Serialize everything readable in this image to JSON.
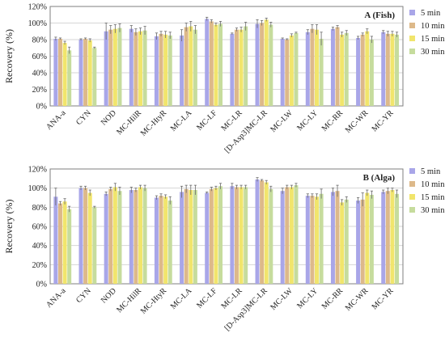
{
  "chart_data": [
    {
      "type": "bar",
      "title": "A (Fish)",
      "ylabel": "Recovery (%)",
      "xlabel": "",
      "ylim": [
        0,
        120
      ],
      "yticks": [
        "0%",
        "20%",
        "40%",
        "60%",
        "80%",
        "100%",
        "120%"
      ],
      "grid": true,
      "legend_position": "right",
      "categories": [
        "ANA-a",
        "CYN",
        "NOD",
        "MC-HilR",
        "MC-HtyR",
        "MC-LA",
        "MC-LF",
        "MC-LR",
        "[D-Asp3]MC-LR",
        "MC-LW",
        "MC-LY",
        "MC-RR",
        "MC-WR",
        "MC-YR"
      ],
      "series": [
        {
          "name": "5 min",
          "values": [
            81,
            80,
            90,
            93,
            84,
            85,
            105,
            87,
            99,
            81,
            89,
            93,
            82,
            89
          ]
        },
        {
          "name": "10 min",
          "values": [
            81,
            81,
            92,
            89,
            87,
            95,
            102,
            92,
            100,
            80,
            93,
            95,
            86,
            87
          ]
        },
        {
          "name": "15 min",
          "values": [
            76,
            79,
            93,
            90,
            86,
            96,
            98,
            92,
            104,
            85,
            92,
            86,
            90,
            87
          ]
        },
        {
          "name": "30 min",
          "values": [
            67,
            70,
            94,
            91,
            85,
            92,
            99,
            96,
            98,
            88,
            81,
            88,
            80,
            86
          ]
        }
      ],
      "errors": [
        [
          2,
          1,
          10,
          4,
          4,
          7,
          2,
          1,
          5,
          1,
          3,
          2,
          2,
          2
        ],
        [
          1,
          1,
          5,
          4,
          3,
          5,
          2,
          2,
          3,
          1,
          5,
          2,
          2,
          3
        ],
        [
          2,
          2,
          5,
          4,
          4,
          6,
          2,
          3,
          2,
          2,
          6,
          3,
          3,
          3
        ],
        [
          4,
          1,
          5,
          5,
          4,
          5,
          3,
          5,
          3,
          1,
          8,
          3,
          4,
          3
        ]
      ]
    },
    {
      "type": "bar",
      "title": "B (Alga)",
      "ylabel": "Recovery (%)",
      "xlabel": "",
      "ylim": [
        0,
        120
      ],
      "yticks": [
        "0%",
        "20%",
        "40%",
        "60%",
        "80%",
        "100%",
        "120%"
      ],
      "grid": true,
      "legend_position": "right",
      "categories": [
        "ANA-a",
        "CYN",
        "NOD",
        "MC-HilR",
        "MC-HtyR",
        "MC-LA",
        "MC-LF",
        "MC-LR",
        "[D-Asp3]MC-LR",
        "MC-LW",
        "MC-LY",
        "MC-RR",
        "MC-WR",
        "MC-YR"
      ],
      "series": [
        {
          "name": "5 min",
          "values": [
            91,
            100,
            94,
            98,
            90,
            96,
            95,
            102,
            109,
            97,
            92,
            96,
            87,
            96
          ]
        },
        {
          "name": "10 min",
          "values": [
            84,
            100,
            99,
            98,
            92,
            99,
            99,
            101,
            108,
            101,
            92,
            97,
            88,
            97
          ]
        },
        {
          "name": "15 min",
          "values": [
            86,
            95,
            101,
            101,
            91,
            98,
            100,
            101,
            106,
            101,
            91,
            85,
            95,
            98
          ]
        },
        {
          "name": "30 min",
          "values": [
            78,
            80,
            97,
            100,
            87,
            98,
            102,
            101,
            99,
            103,
            94,
            88,
            93,
            94
          ]
        }
      ],
      "errors": [
        [
          9,
          2,
          2,
          3,
          2,
          6,
          1,
          3,
          2,
          3,
          2,
          4,
          3,
          2
        ],
        [
          2,
          2,
          2,
          2,
          2,
          4,
          2,
          2,
          1,
          2,
          2,
          6,
          7,
          3
        ],
        [
          3,
          3,
          4,
          2,
          2,
          5,
          2,
          2,
          2,
          2,
          3,
          3,
          3,
          2
        ],
        [
          3,
          1,
          4,
          3,
          4,
          5,
          3,
          2,
          3,
          2,
          5,
          3,
          4,
          4
        ]
      ]
    }
  ],
  "colors": {
    "series": [
      "#a9a6e8",
      "#ddb98a",
      "#f1e56c",
      "#c6dc9d"
    ],
    "error_bar": "#6b6b6b",
    "grid": "#d6d6d6",
    "axis": "#7f7f7f"
  }
}
